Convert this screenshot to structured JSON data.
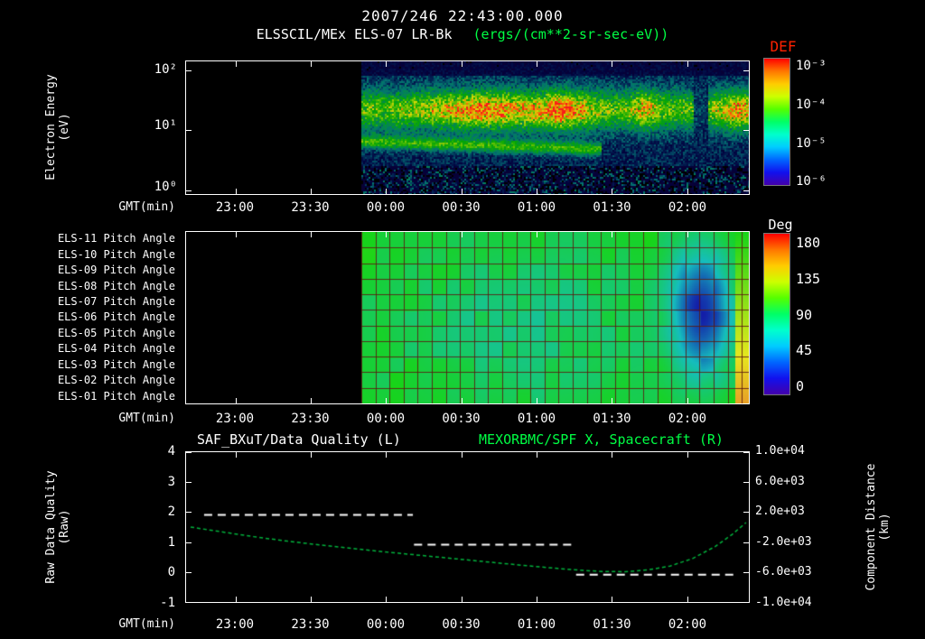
{
  "colors": {
    "background": "#000000",
    "text": "#ffffff",
    "accent_green": "#00ff44",
    "def_red": "#ff2200",
    "curve_green": "#00b23c"
  },
  "header": {
    "timestamp": "2007/246 22:43:00.000",
    "title": "ELSSCIL/MEx ELS-07 LR-Bk",
    "units": "(ergs/(cm**2-sr-sec-eV))",
    "def_label": "DEF"
  },
  "panel_energy": {
    "y_label_line1": "Electron Energy",
    "y_label_line2": "(eV)",
    "y_ticks": [
      "10²",
      "10¹",
      "10⁰"
    ],
    "x_label": "GMT(min)",
    "x_ticks": [
      "23:00",
      "23:30",
      "00:00",
      "00:30",
      "01:00",
      "01:30",
      "02:00"
    ],
    "colorbar": {
      "ticks": [
        "10⁻³",
        "10⁻⁴",
        "10⁻⁵",
        "10⁻⁶"
      ]
    }
  },
  "panel_pitch": {
    "row_labels": [
      "ELS-11 Pitch Angle",
      "ELS-10 Pitch Angle",
      "ELS-09 Pitch Angle",
      "ELS-08 Pitch Angle",
      "ELS-07 Pitch Angle",
      "ELS-06 Pitch Angle",
      "ELS-05 Pitch Angle",
      "ELS-04 Pitch Angle",
      "ELS-03 Pitch Angle",
      "ELS-02 Pitch Angle",
      "ELS-01 Pitch Angle"
    ],
    "x_label": "GMT(min)",
    "x_ticks": [
      "23:00",
      "23:30",
      "00:00",
      "00:30",
      "01:00",
      "01:30",
      "02:00"
    ],
    "colorbar": {
      "title": "Deg",
      "ticks": [
        "180",
        "135",
        "90",
        "45",
        "0"
      ]
    }
  },
  "panel_line": {
    "title_left": "SAF_BXuT/Data Quality (L)",
    "title_right": "MEXORBMC/SPF X, Spacecraft (R)",
    "left_axis": {
      "label_line1": "Raw Data Quality",
      "label_line2": "(Raw)",
      "ticks": [
        "4",
        "3",
        "2",
        "1",
        "0",
        "-1"
      ]
    },
    "right_axis": {
      "label_line1": "Component Distance",
      "label_line2": "(km)",
      "ticks": [
        "1.0e+04",
        "6.0e+03",
        "2.0e+03",
        "-2.0e+03",
        "-6.0e+03",
        "-1.0e+04"
      ]
    },
    "x_label": "GMT(min)",
    "x_ticks": [
      "23:00",
      "23:30",
      "00:00",
      "00:30",
      "01:00",
      "01:30",
      "02:00"
    ]
  },
  "chart_data": [
    {
      "type": "heatmap",
      "title": "ELSSCIL/MEx ELS-07 LR-Bk electron spectrogram",
      "z_units": "ergs/(cm**2-sr-sec-eV)",
      "x_axis": "GMT(min)",
      "x_ticks": [
        "23:00",
        "23:30",
        "00:00",
        "00:30",
        "01:00",
        "01:30",
        "02:00"
      ],
      "x_range": [
        "22:40",
        "02:24"
      ],
      "data_start": "23:50",
      "data_start_frac": 0.312,
      "y_axis": "Electron Energy (eV)",
      "y_scale": "log",
      "y_range": [
        1,
        140
      ],
      "z_range": [
        1e-06,
        0.001
      ],
      "colorbar_label": "DEF",
      "description": "No data before ~23:50. Broad electron enhancement 5-50 eV, peak flux near 1e-4 around 00:30-01:15 (yellow-green core), faint descending band 4-8 eV until ~01:15, bright narrow column near 01:45, data dropout near 02:05, bright low-energy blob at right edge after 02:15. Background dark-blue noise, sparse speckle below 3 eV."
    },
    {
      "type": "heatmap",
      "title": "ELS anode pitch angles",
      "rows": [
        "ELS-11",
        "ELS-10",
        "ELS-09",
        "ELS-08",
        "ELS-07",
        "ELS-06",
        "ELS-05",
        "ELS-04",
        "ELS-03",
        "ELS-02",
        "ELS-01"
      ],
      "x_ticks": [
        "23:00",
        "23:30",
        "00:00",
        "00:30",
        "01:00",
        "01:30",
        "02:00"
      ],
      "data_start": "23:50",
      "data_start_frac": 0.312,
      "z_units": "Deg",
      "z_range": [
        0,
        180
      ],
      "description": "Pitch angles mostly 80-110 deg (green) on all anodes with slight cyan dip (~70 deg) mid-interval; strong drop to ~20-40 deg (blue blob) around 01:50-02:10; recovery toward 100-155 deg (green/yellow) at the far right edge. Fine dark-red time/anode grid overlay."
    },
    {
      "type": "line",
      "title_left": "SAF_BXuT/Data Quality (L)",
      "title_right": "MEXORBMC/SPF X, Spacecraft (R)",
      "left_axis": {
        "label": "Raw Data Quality (Raw)",
        "range": [
          -1,
          4
        ]
      },
      "right_axis": {
        "label": "Component Distance (km)",
        "range": [
          -10000,
          10000
        ]
      },
      "km_per_left_unit": 4000,
      "km_at_left_zero": -6000,
      "series": [
        {
          "name": "SAF_BXuT/Data Quality",
          "axis": "left",
          "style": "dashed-white",
          "segments": [
            {
              "value": 2,
              "x0": 0.032,
              "x1": 0.403
            },
            {
              "value": 1,
              "x0": 0.405,
              "x1": 0.691
            },
            {
              "value": 0,
              "x0": 0.693,
              "x1": 0.976
            }
          ]
        },
        {
          "name": "MEXORBMC/SPF X Spacecraft",
          "axis": "left-equivalent",
          "style": "dashed-green",
          "points": [
            [
              0.008,
              1.5
            ],
            [
              0.06,
              1.35
            ],
            [
              0.12,
              1.18
            ],
            [
              0.18,
              1.03
            ],
            [
              0.24,
              0.9
            ],
            [
              0.3,
              0.78
            ],
            [
              0.36,
              0.66
            ],
            [
              0.42,
              0.55
            ],
            [
              0.48,
              0.44
            ],
            [
              0.54,
              0.33
            ],
            [
              0.6,
              0.22
            ],
            [
              0.66,
              0.12
            ],
            [
              0.7,
              0.06
            ],
            [
              0.74,
              0.02
            ],
            [
              0.78,
              0.01
            ],
            [
              0.82,
              0.07
            ],
            [
              0.86,
              0.2
            ],
            [
              0.9,
              0.45
            ],
            [
              0.94,
              0.85
            ],
            [
              0.97,
              1.25
            ],
            [
              0.995,
              1.65
            ]
          ]
        }
      ]
    }
  ]
}
